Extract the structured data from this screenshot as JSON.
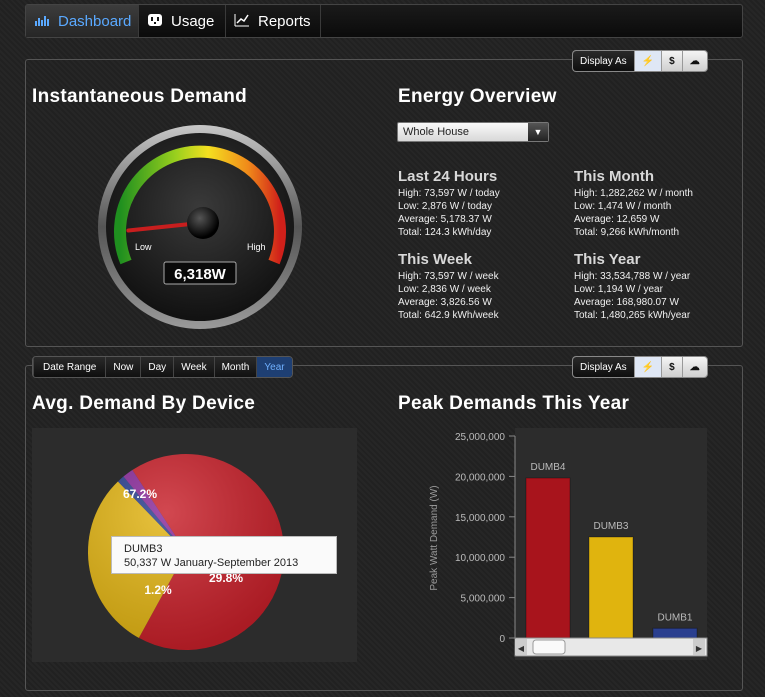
{
  "nav": {
    "tabs": [
      {
        "label": "Dashboard",
        "icon": "bar-chart-icon",
        "active": true
      },
      {
        "label": "Usage",
        "icon": "outlet-icon",
        "active": false
      },
      {
        "label": "Reports",
        "icon": "line-chart-icon",
        "active": false
      }
    ]
  },
  "display_as": {
    "label": "Display As",
    "options": [
      "⚡",
      "$",
      "☁"
    ]
  },
  "date_range": {
    "label": "Date Range",
    "options": [
      "Now",
      "Day",
      "Week",
      "Month",
      "Year"
    ],
    "selected": "Year"
  },
  "instantaneous": {
    "title": "Instantaneous Demand",
    "low_label": "Low",
    "high_label": "High",
    "value": "6,318W",
    "level": 0.1
  },
  "overview": {
    "title": "Energy Overview",
    "select_value": "Whole House",
    "blocks": [
      {
        "title": "Last 24 Hours",
        "lines": [
          "High: 73,597 W / today",
          "Low: 2,876 W / today",
          "Average: 5,178.37 W",
          "Total: 124.3 kWh/day"
        ]
      },
      {
        "title": "This Month",
        "lines": [
          "High: 1,282,262 W / month",
          "Low: 1,474 W / month",
          "Average: 12,659 W",
          "Total: 9,266 kWh/month"
        ]
      },
      {
        "title": "This Week",
        "lines": [
          "High: 73,597 W / week",
          "Low: 2,836 W / week",
          "Average: 3,826.56 W",
          "Total: 642.9 kWh/week"
        ]
      },
      {
        "title": "This Year",
        "lines": [
          "High: 33,534,788 W / year",
          "Low: 1,194 W / year",
          "Average: 168,980.07 W",
          "Total: 1,480,265 kWh/year"
        ]
      }
    ]
  },
  "avg_demand": {
    "title": "Avg. Demand By Device",
    "tooltip": {
      "line1": "DUMB3",
      "line2": "50,337 W January-September 2013"
    }
  },
  "peak": {
    "title": "Peak Demands This Year"
  },
  "chart_data": [
    {
      "type": "pie",
      "title": "Avg. Demand By Device",
      "slices": [
        {
          "label": "67.2%",
          "value": 67.2,
          "color": "#c8202a"
        },
        {
          "label": "29.8%",
          "value": 29.8,
          "color": "#e3b514"
        },
        {
          "label": "1.2%",
          "value": 1.2,
          "color": "#2a3f8f"
        },
        {
          "label": "",
          "value": 1.8,
          "color": "#8a2a9a"
        }
      ]
    },
    {
      "type": "bar",
      "title": "Peak Demands This Year",
      "ylabel": "Peak Watt Demand (W)",
      "ylim": [
        0,
        25000000
      ],
      "yticks": [
        "0",
        "5,000,000",
        "10,000,000",
        "15,000,000",
        "20,000,000",
        "25,000,000"
      ],
      "ytick_values": [
        0,
        5000000,
        10000000,
        15000000,
        20000000,
        25000000
      ],
      "categories": [
        "DUMB4",
        "DUMB3",
        "DUMB1"
      ],
      "values": [
        19800000,
        12500000,
        1200000
      ],
      "colors": [
        "#a8141c",
        "#e0b40e",
        "#2a3f8f"
      ]
    }
  ]
}
